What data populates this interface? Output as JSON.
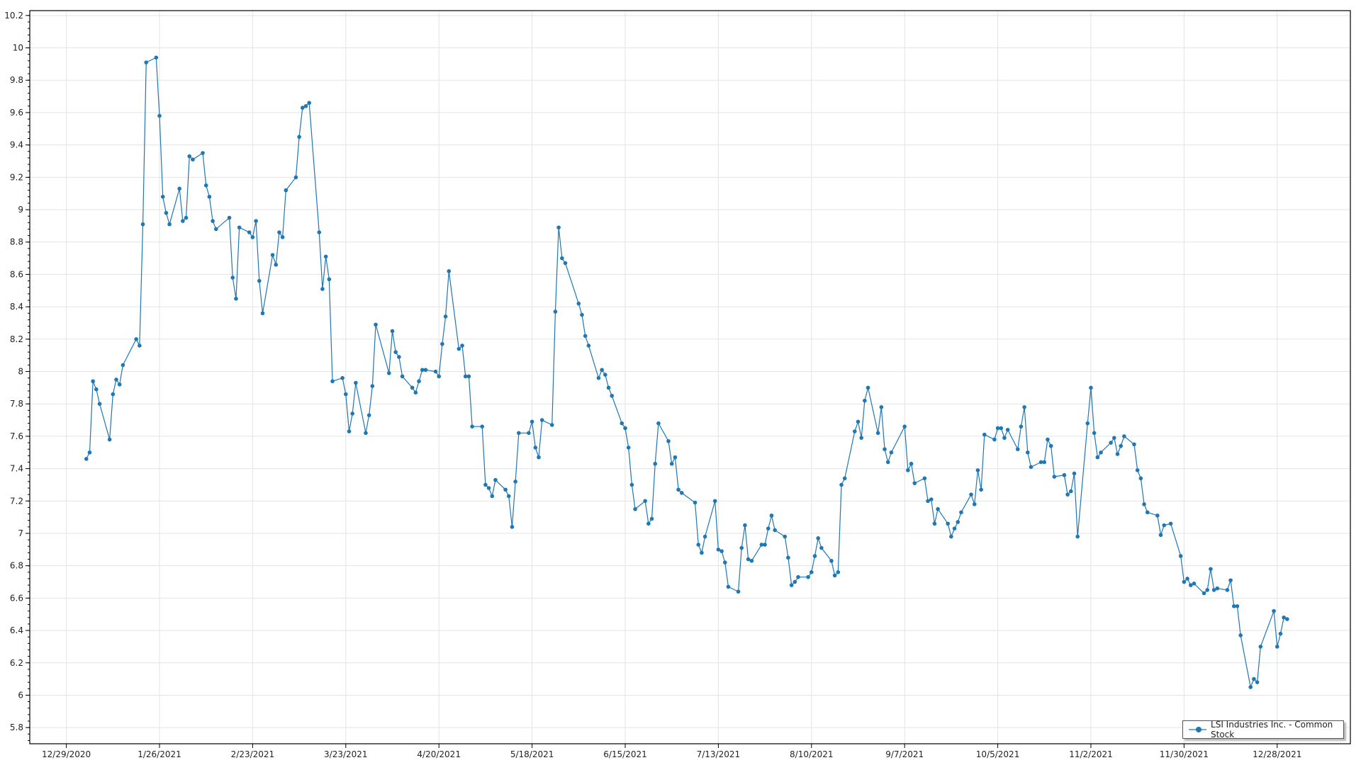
{
  "chart_data": {
    "type": "line",
    "legend": {
      "label": "LSI Industries Inc. - Common Stock",
      "placement": "bottom-right"
    },
    "colors": {
      "series": "#1f77b4",
      "grid": "#e3e3e3"
    },
    "grid": true,
    "ylim": [
      5.7,
      10.23
    ],
    "yticks": [
      "5.8",
      "6",
      "6.2",
      "6.4",
      "6.6",
      "6.8",
      "7",
      "7.2",
      "7.4",
      "7.6",
      "7.8",
      "8",
      "8.2",
      "8.4",
      "8.6",
      "8.8",
      "9",
      "9.2",
      "9.4",
      "9.6",
      "9.8",
      "10",
      "10.2"
    ],
    "xlim": [
      "12/18/2020",
      "1/19/2022"
    ],
    "xticks": [
      "12/29/2020",
      "1/26/2021",
      "2/23/2021",
      "3/23/2021",
      "4/20/2021",
      "5/18/2021",
      "6/15/2021",
      "7/13/2021",
      "8/10/2021",
      "9/7/2021",
      "10/5/2021",
      "11/2/2021",
      "11/30/2021",
      "12/28/2021"
    ],
    "series": [
      {
        "name": "LSI Industries Inc. - Common Stock",
        "points": [
          [
            "1/4/2021",
            7.46
          ],
          [
            "1/5/2021",
            7.5
          ],
          [
            "1/6/2021",
            7.94
          ],
          [
            "1/7/2021",
            7.89
          ],
          [
            "1/8/2021",
            7.8
          ],
          [
            "1/11/2021",
            7.58
          ],
          [
            "1/12/2021",
            7.86
          ],
          [
            "1/13/2021",
            7.95
          ],
          [
            "1/14/2021",
            7.92
          ],
          [
            "1/15/2021",
            8.04
          ],
          [
            "1/19/2021",
            8.2
          ],
          [
            "1/20/2021",
            8.16
          ],
          [
            "1/21/2021",
            8.91
          ],
          [
            "1/22/2021",
            9.91
          ],
          [
            "1/25/2021",
            9.94
          ],
          [
            "1/26/2021",
            9.58
          ],
          [
            "1/27/2021",
            9.08
          ],
          [
            "1/28/2021",
            8.98
          ],
          [
            "1/29/2021",
            8.91
          ],
          [
            "2/1/2021",
            9.13
          ],
          [
            "2/2/2021",
            8.93
          ],
          [
            "2/3/2021",
            8.95
          ],
          [
            "2/4/2021",
            9.33
          ],
          [
            "2/5/2021",
            9.31
          ],
          [
            "2/8/2021",
            9.35
          ],
          [
            "2/9/2021",
            9.15
          ],
          [
            "2/10/2021",
            9.08
          ],
          [
            "2/11/2021",
            8.93
          ],
          [
            "2/12/2021",
            8.88
          ],
          [
            "2/16/2021",
            8.95
          ],
          [
            "2/17/2021",
            8.58
          ],
          [
            "2/18/2021",
            8.45
          ],
          [
            "2/19/2021",
            8.89
          ],
          [
            "2/22/2021",
            8.86
          ],
          [
            "2/23/2021",
            8.83
          ],
          [
            "2/24/2021",
            8.93
          ],
          [
            "2/25/2021",
            8.56
          ],
          [
            "2/26/2021",
            8.36
          ],
          [
            "3/1/2021",
            8.72
          ],
          [
            "3/2/2021",
            8.66
          ],
          [
            "3/3/2021",
            8.86
          ],
          [
            "3/4/2021",
            8.83
          ],
          [
            "3/5/2021",
            9.12
          ],
          [
            "3/8/2021",
            9.2
          ],
          [
            "3/9/2021",
            9.45
          ],
          [
            "3/10/2021",
            9.63
          ],
          [
            "3/11/2021",
            9.64
          ],
          [
            "3/12/2021",
            9.66
          ],
          [
            "3/15/2021",
            8.86
          ],
          [
            "3/16/2021",
            8.51
          ],
          [
            "3/17/2021",
            8.71
          ],
          [
            "3/18/2021",
            8.57
          ],
          [
            "3/19/2021",
            7.94
          ],
          [
            "3/22/2021",
            7.96
          ],
          [
            "3/23/2021",
            7.86
          ],
          [
            "3/24/2021",
            7.63
          ],
          [
            "3/25/2021",
            7.74
          ],
          [
            "3/26/2021",
            7.93
          ],
          [
            "3/29/2021",
            7.62
          ],
          [
            "3/30/2021",
            7.73
          ],
          [
            "3/31/2021",
            7.91
          ],
          [
            "4/1/2021",
            8.29
          ],
          [
            "4/5/2021",
            7.99
          ],
          [
            "4/6/2021",
            8.25
          ],
          [
            "4/7/2021",
            8.12
          ],
          [
            "4/8/2021",
            8.09
          ],
          [
            "4/9/2021",
            7.97
          ],
          [
            "4/12/2021",
            7.9
          ],
          [
            "4/13/2021",
            7.87
          ],
          [
            "4/14/2021",
            7.94
          ],
          [
            "4/15/2021",
            8.01
          ],
          [
            "4/16/2021",
            8.01
          ],
          [
            "4/19/2021",
            8.0
          ],
          [
            "4/20/2021",
            7.97
          ],
          [
            "4/21/2021",
            8.17
          ],
          [
            "4/22/2021",
            8.34
          ],
          [
            "4/23/2021",
            8.62
          ],
          [
            "4/26/2021",
            8.14
          ],
          [
            "4/27/2021",
            8.16
          ],
          [
            "4/28/2021",
            7.97
          ],
          [
            "4/29/2021",
            7.97
          ],
          [
            "4/30/2021",
            7.66
          ],
          [
            "5/3/2021",
            7.66
          ],
          [
            "5/4/2021",
            7.3
          ],
          [
            "5/5/2021",
            7.28
          ],
          [
            "5/6/2021",
            7.23
          ],
          [
            "5/7/2021",
            7.33
          ],
          [
            "5/10/2021",
            7.27
          ],
          [
            "5/11/2021",
            7.23
          ],
          [
            "5/12/2021",
            7.04
          ],
          [
            "5/13/2021",
            7.32
          ],
          [
            "5/14/2021",
            7.62
          ],
          [
            "5/17/2021",
            7.62
          ],
          [
            "5/18/2021",
            7.69
          ],
          [
            "5/19/2021",
            7.53
          ],
          [
            "5/20/2021",
            7.47
          ],
          [
            "5/21/2021",
            7.7
          ],
          [
            "5/24/2021",
            7.67
          ],
          [
            "5/25/2021",
            8.37
          ],
          [
            "5/26/2021",
            8.89
          ],
          [
            "5/27/2021",
            8.7
          ],
          [
            "5/28/2021",
            8.67
          ],
          [
            "6/1/2021",
            8.42
          ],
          [
            "6/2/2021",
            8.35
          ],
          [
            "6/3/2021",
            8.22
          ],
          [
            "6/4/2021",
            8.16
          ],
          [
            "6/7/2021",
            7.96
          ],
          [
            "6/8/2021",
            8.01
          ],
          [
            "6/9/2021",
            7.98
          ],
          [
            "6/10/2021",
            7.9
          ],
          [
            "6/11/2021",
            7.85
          ],
          [
            "6/14/2021",
            7.68
          ],
          [
            "6/15/2021",
            7.65
          ],
          [
            "6/16/2021",
            7.53
          ],
          [
            "6/17/2021",
            7.3
          ],
          [
            "6/18/2021",
            7.15
          ],
          [
            "6/21/2021",
            7.2
          ],
          [
            "6/22/2021",
            7.06
          ],
          [
            "6/23/2021",
            7.09
          ],
          [
            "6/24/2021",
            7.43
          ],
          [
            "6/25/2021",
            7.68
          ],
          [
            "6/28/2021",
            7.57
          ],
          [
            "6/29/2021",
            7.43
          ],
          [
            "6/30/2021",
            7.47
          ],
          [
            "7/1/2021",
            7.27
          ],
          [
            "7/2/2021",
            7.25
          ],
          [
            "7/6/2021",
            7.19
          ],
          [
            "7/7/2021",
            6.93
          ],
          [
            "7/8/2021",
            6.88
          ],
          [
            "7/9/2021",
            6.98
          ],
          [
            "7/12/2021",
            7.2
          ],
          [
            "7/13/2021",
            6.9
          ],
          [
            "7/14/2021",
            6.89
          ],
          [
            "7/15/2021",
            6.82
          ],
          [
            "7/16/2021",
            6.67
          ],
          [
            "7/19/2021",
            6.64
          ],
          [
            "7/20/2021",
            6.91
          ],
          [
            "7/21/2021",
            7.05
          ],
          [
            "7/22/2021",
            6.84
          ],
          [
            "7/23/2021",
            6.83
          ],
          [
            "7/26/2021",
            6.93
          ],
          [
            "7/27/2021",
            6.93
          ],
          [
            "7/28/2021",
            7.03
          ],
          [
            "7/29/2021",
            7.11
          ],
          [
            "7/30/2021",
            7.02
          ],
          [
            "8/2/2021",
            6.98
          ],
          [
            "8/3/2021",
            6.85
          ],
          [
            "8/4/2021",
            6.68
          ],
          [
            "8/5/2021",
            6.7
          ],
          [
            "8/6/2021",
            6.73
          ],
          [
            "8/9/2021",
            6.73
          ],
          [
            "8/10/2021",
            6.76
          ],
          [
            "8/11/2021",
            6.86
          ],
          [
            "8/12/2021",
            6.97
          ],
          [
            "8/13/2021",
            6.91
          ],
          [
            "8/16/2021",
            6.83
          ],
          [
            "8/17/2021",
            6.74
          ],
          [
            "8/18/2021",
            6.76
          ],
          [
            "8/19/2021",
            7.3
          ],
          [
            "8/20/2021",
            7.34
          ],
          [
            "8/23/2021",
            7.63
          ],
          [
            "8/24/2021",
            7.69
          ],
          [
            "8/25/2021",
            7.59
          ],
          [
            "8/26/2021",
            7.82
          ],
          [
            "8/27/2021",
            7.9
          ],
          [
            "8/30/2021",
            7.62
          ],
          [
            "8/31/2021",
            7.78
          ],
          [
            "9/1/2021",
            7.52
          ],
          [
            "9/2/2021",
            7.44
          ],
          [
            "9/3/2021",
            7.5
          ],
          [
            "9/7/2021",
            7.66
          ],
          [
            "9/8/2021",
            7.39
          ],
          [
            "9/9/2021",
            7.43
          ],
          [
            "9/10/2021",
            7.31
          ],
          [
            "9/13/2021",
            7.34
          ],
          [
            "9/14/2021",
            7.2
          ],
          [
            "9/15/2021",
            7.21
          ],
          [
            "9/16/2021",
            7.06
          ],
          [
            "9/17/2021",
            7.15
          ],
          [
            "9/20/2021",
            7.06
          ],
          [
            "9/21/2021",
            6.98
          ],
          [
            "9/22/2021",
            7.03
          ],
          [
            "9/23/2021",
            7.07
          ],
          [
            "9/24/2021",
            7.13
          ],
          [
            "9/27/2021",
            7.24
          ],
          [
            "9/28/2021",
            7.18
          ],
          [
            "9/29/2021",
            7.39
          ],
          [
            "9/30/2021",
            7.27
          ],
          [
            "10/1/2021",
            7.61
          ],
          [
            "10/4/2021",
            7.58
          ],
          [
            "10/5/2021",
            7.65
          ],
          [
            "10/6/2021",
            7.65
          ],
          [
            "10/7/2021",
            7.59
          ],
          [
            "10/8/2021",
            7.64
          ],
          [
            "10/11/2021",
            7.52
          ],
          [
            "10/12/2021",
            7.66
          ],
          [
            "10/13/2021",
            7.78
          ],
          [
            "10/14/2021",
            7.5
          ],
          [
            "10/15/2021",
            7.41
          ],
          [
            "10/18/2021",
            7.44
          ],
          [
            "10/19/2021",
            7.44
          ],
          [
            "10/20/2021",
            7.58
          ],
          [
            "10/21/2021",
            7.54
          ],
          [
            "10/22/2021",
            7.35
          ],
          [
            "10/25/2021",
            7.36
          ],
          [
            "10/26/2021",
            7.24
          ],
          [
            "10/27/2021",
            7.26
          ],
          [
            "10/28/2021",
            7.37
          ],
          [
            "10/29/2021",
            6.98
          ],
          [
            "11/1/2021",
            7.68
          ],
          [
            "11/2/2021",
            7.9
          ],
          [
            "11/3/2021",
            7.62
          ],
          [
            "11/4/2021",
            7.47
          ],
          [
            "11/5/2021",
            7.5
          ],
          [
            "11/8/2021",
            7.56
          ],
          [
            "11/9/2021",
            7.59
          ],
          [
            "11/10/2021",
            7.49
          ],
          [
            "11/11/2021",
            7.54
          ],
          [
            "11/12/2021",
            7.6
          ],
          [
            "11/15/2021",
            7.55
          ],
          [
            "11/16/2021",
            7.39
          ],
          [
            "11/17/2021",
            7.34
          ],
          [
            "11/18/2021",
            7.18
          ],
          [
            "11/19/2021",
            7.13
          ],
          [
            "11/22/2021",
            7.11
          ],
          [
            "11/23/2021",
            6.99
          ],
          [
            "11/24/2021",
            7.05
          ],
          [
            "11/26/2021",
            7.06
          ],
          [
            "11/29/2021",
            6.86
          ],
          [
            "11/30/2021",
            6.7
          ],
          [
            "12/1/2021",
            6.72
          ],
          [
            "12/2/2021",
            6.68
          ],
          [
            "12/3/2021",
            6.69
          ],
          [
            "12/6/2021",
            6.63
          ],
          [
            "12/7/2021",
            6.65
          ],
          [
            "12/8/2021",
            6.78
          ],
          [
            "12/9/2021",
            6.65
          ],
          [
            "12/10/2021",
            6.66
          ],
          [
            "12/13/2021",
            6.65
          ],
          [
            "12/14/2021",
            6.71
          ],
          [
            "12/15/2021",
            6.55
          ],
          [
            "12/16/2021",
            6.55
          ],
          [
            "12/17/2021",
            6.37
          ],
          [
            "12/20/2021",
            6.05
          ],
          [
            "12/21/2021",
            6.1
          ],
          [
            "12/22/2021",
            6.08
          ],
          [
            "12/23/2021",
            6.3
          ],
          [
            "12/27/2021",
            6.52
          ],
          [
            "12/28/2021",
            6.3
          ],
          [
            "12/29/2021",
            6.38
          ],
          [
            "12/30/2021",
            6.48
          ],
          [
            "12/31/2021",
            6.47
          ]
        ]
      }
    ]
  }
}
